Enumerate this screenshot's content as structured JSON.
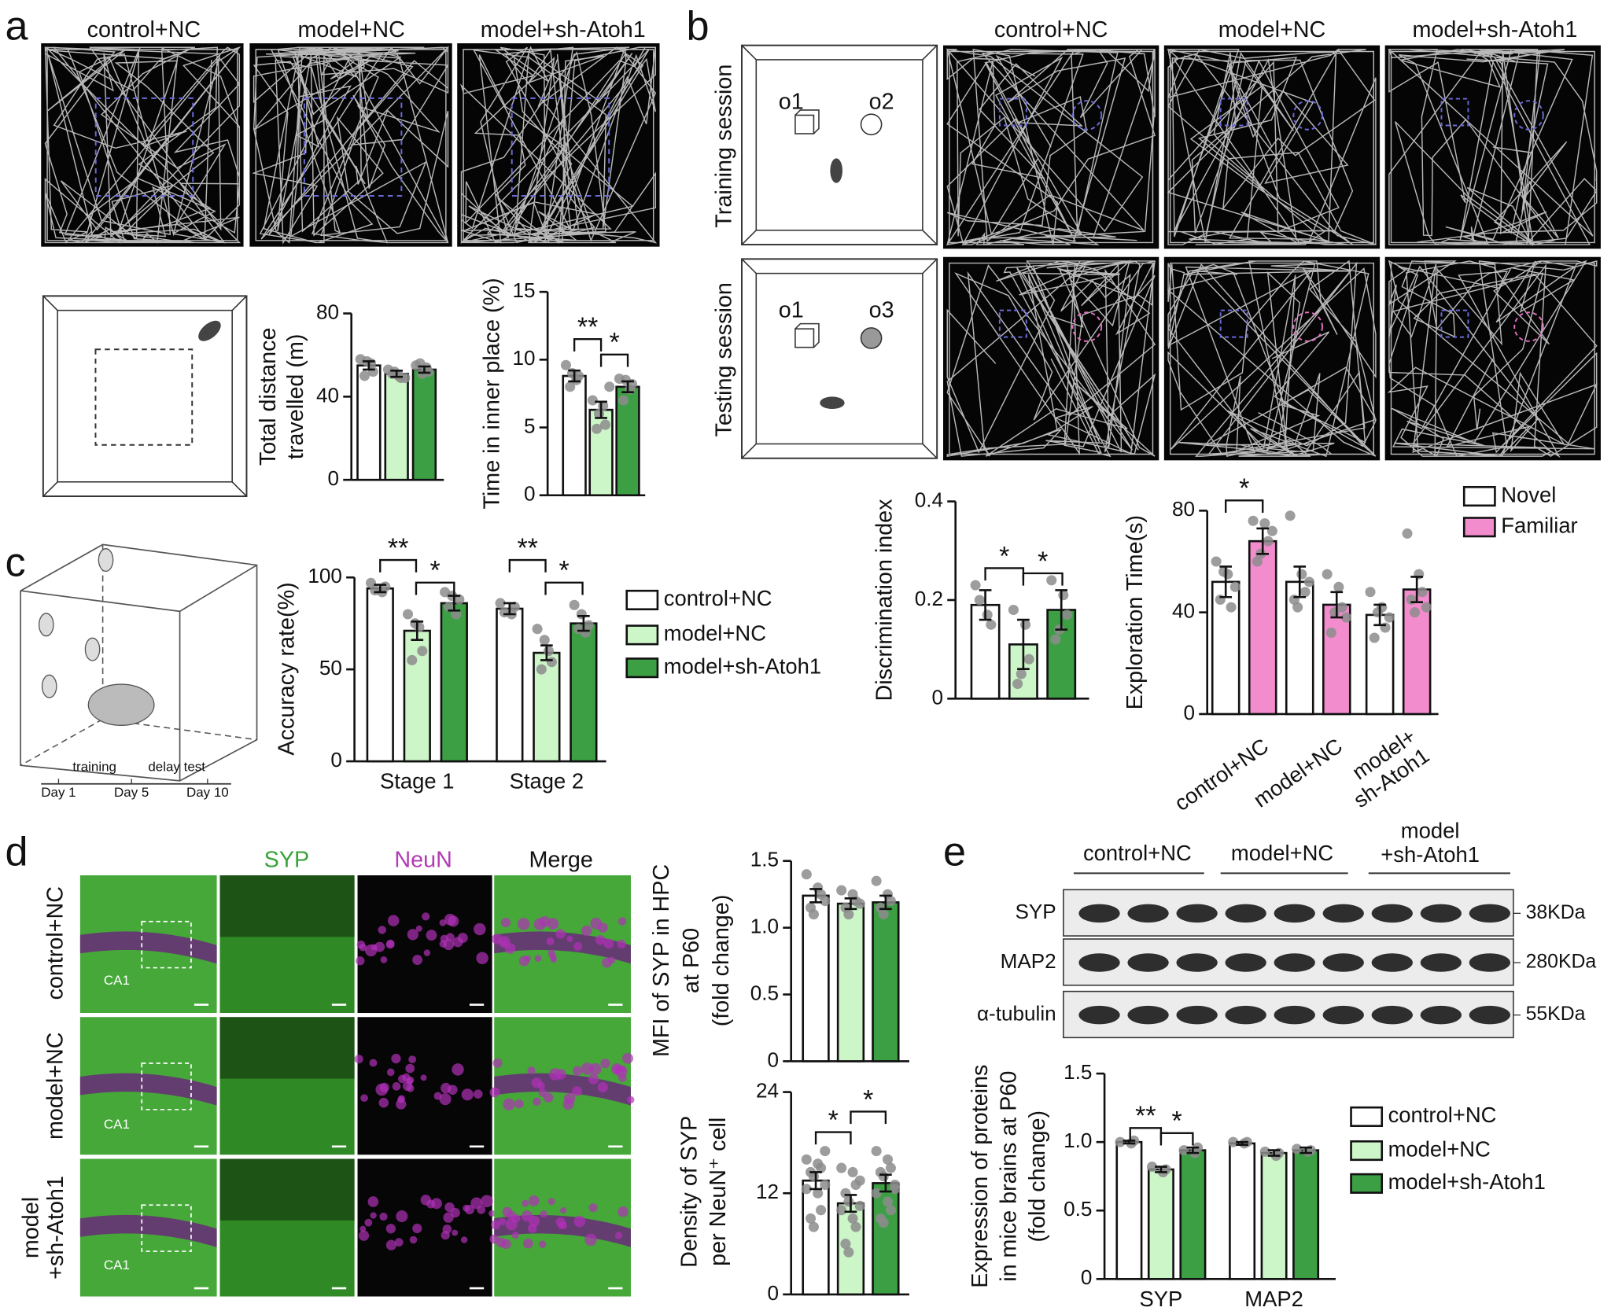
{
  "figure": {
    "panels": [
      "a",
      "b",
      "c",
      "d",
      "e"
    ],
    "a": {
      "columns": [
        "control+NC",
        "model+NC",
        "model+sh-Atoh1"
      ]
    },
    "b": {
      "columns": [
        "control+NC",
        "model+NC",
        "model+sh-Atoh1"
      ],
      "rows": [
        "Training session",
        "Testing session"
      ],
      "objects": [
        [
          "o1",
          "o2"
        ],
        [
          "o1",
          "o3"
        ]
      ]
    },
    "c": {
      "timeline": [
        "training",
        "delay test"
      ],
      "days": [
        "Day 1",
        "Day 5",
        "Day 10"
      ]
    },
    "d": {
      "columns": [
        "SYP",
        "NeuN",
        "Merge"
      ],
      "rows": [
        "control+NC",
        "model+NC",
        "model\n+sh-Atoh1"
      ],
      "region": [
        "CA1",
        "CA1",
        "CA1"
      ]
    },
    "e": {
      "groups": [
        "control+NC",
        "model+NC",
        "model\n+sh-Atoh1"
      ],
      "proteins": [
        "SYP",
        "MAP2",
        "α-tubulin"
      ],
      "sizes": [
        "38KDa",
        "280KDa",
        "55KDa"
      ]
    }
  },
  "chart_data": [
    {
      "type": "bar",
      "ylabel": [
        "Total distance",
        "travelled (m)"
      ],
      "categories": [
        null
      ],
      "ylim": [
        0,
        80
      ],
      "yticks": [
        0,
        40,
        80
      ],
      "series": [
        {
          "color": "#ffffff",
          "values": [
            55
          ],
          "errors": [
            2
          ],
          "points": [
            [
              58,
              56,
              52,
              50,
              57
            ]
          ]
        },
        {
          "color": "#ccf5c8",
          "values": [
            51
          ],
          "errors": [
            1.5
          ],
          "points": [
            [
              53,
              50,
              49,
              51,
              52,
              49
            ]
          ]
        },
        {
          "color": "#3c9f44",
          "values": [
            53
          ],
          "errors": [
            1.5
          ],
          "points": [
            [
              55,
              54,
              52,
              56,
              51
            ]
          ]
        }
      ]
    },
    {
      "type": "bar",
      "ylabel": [
        "Time in inner place (%)"
      ],
      "categories": [
        null
      ],
      "ylim": [
        0,
        15
      ],
      "yticks": [
        0,
        5,
        10,
        15
      ],
      "annotations": [
        "**",
        "*"
      ],
      "series": [
        {
          "color": "#ffffff",
          "values": [
            8.8
          ],
          "errors": [
            0.4
          ],
          "points": [
            [
              9.6,
              8.5,
              8.8,
              8.0,
              9.0
            ]
          ]
        },
        {
          "color": "#ccf5c8",
          "values": [
            6.3
          ],
          "errors": [
            0.6
          ],
          "points": [
            [
              7.0,
              6.6,
              5.2,
              4.9,
              6.0,
              8.0
            ]
          ]
        },
        {
          "color": "#3c9f44",
          "values": [
            8.0
          ],
          "errors": [
            0.4
          ],
          "points": [
            [
              8.6,
              7.8,
              8.2,
              7.0,
              8.5
            ]
          ]
        }
      ]
    },
    {
      "type": "bar",
      "ylabel": [
        "Discrimination index"
      ],
      "categories": [
        null
      ],
      "ylim": [
        0,
        0.4
      ],
      "yticks": [
        0,
        0.2,
        0.4
      ],
      "annotations": [
        "*",
        "*"
      ],
      "series": [
        {
          "color": "#ffffff",
          "values": [
            0.19
          ],
          "errors": [
            0.03
          ],
          "points": [
            [
              0.23,
              0.17,
              0.15,
              0.2
            ]
          ]
        },
        {
          "color": "#ccf5c8",
          "values": [
            0.11
          ],
          "errors": [
            0.05
          ],
          "points": [
            [
              0.18,
              0.15,
              0.08,
              0.03,
              0.05
            ]
          ]
        },
        {
          "color": "#3c9f44",
          "values": [
            0.18
          ],
          "errors": [
            0.04
          ],
          "points": [
            [
              0.24,
              0.21,
              0.17,
              0.12,
              0.14
            ]
          ]
        }
      ]
    },
    {
      "type": "bar",
      "ylabel": [
        "Exploration Time(s)"
      ],
      "categories": [
        "control+NC",
        "model+NC",
        "model+\nsh-Atoh1"
      ],
      "ylim": [
        0,
        80
      ],
      "yticks": [
        0,
        40,
        80
      ],
      "annotations": [
        "*"
      ],
      "legend": "upper right",
      "series": [
        {
          "name": "Novel",
          "color": "#ffffff",
          "values": [
            52,
            52,
            39
          ],
          "errors": [
            6,
            6,
            4
          ],
          "points": [
            [
              60,
              55,
              42,
              45,
              56,
              50
            ],
            [
              78,
              55,
              48,
              45,
              42,
              52
            ],
            [
              48,
              42,
              34,
              30,
              40,
              38
            ]
          ]
        },
        {
          "name": "Familiar",
          "color": "#f28ccd",
          "values": [
            68,
            43,
            49
          ],
          "errors": [
            5,
            5,
            5
          ],
          "points": [
            [
              76,
              75,
              68,
              60,
              63,
              72
            ],
            [
              55,
              50,
              42,
              32,
              40,
              38
            ],
            [
              71,
              55,
              48,
              45,
              40,
              42
            ]
          ]
        }
      ]
    },
    {
      "type": "bar",
      "ylabel": [
        "Accuracy rate(%)"
      ],
      "categories": [
        "Stage 1",
        "Stage 2"
      ],
      "ylim": [
        0,
        100
      ],
      "yticks": [
        0,
        50,
        100
      ],
      "annotations": [
        "**",
        "*",
        "**",
        "*"
      ],
      "legend": "right",
      "series": [
        {
          "name": "control+NC",
          "color": "#ffffff",
          "values": [
            94,
            83
          ],
          "errors": [
            2,
            3
          ],
          "points": [
            [
              97,
              92,
              95,
              93
            ],
            [
              86,
              80,
              84,
              81
            ]
          ]
        },
        {
          "name": "model+NC",
          "color": "#ccf5c8",
          "values": [
            71,
            59
          ],
          "errors": [
            5,
            4
          ],
          "points": [
            [
              80,
              73,
              60,
              55,
              75
            ],
            [
              72,
              60,
              54,
              50,
              66
            ]
          ]
        },
        {
          "name": "model+sh-Atoh1",
          "color": "#3c9f44",
          "values": [
            86,
            75
          ],
          "errors": [
            4,
            4
          ],
          "points": [
            [
              92,
              80,
              88,
              84,
              90
            ],
            [
              85,
              70,
              74,
              72,
              80
            ]
          ]
        }
      ]
    },
    {
      "type": "bar",
      "ylabel": [
        "MFI of SYP in HPC",
        "at P60",
        "(fold change)"
      ],
      "categories": [
        null
      ],
      "ylim": [
        0,
        1.5
      ],
      "yticks": [
        0,
        0.5,
        {
          "value": 1,
          "label": "1.0"
        },
        1.5
      ],
      "series": [
        {
          "color": "#ffffff",
          "values": [
            1.24
          ],
          "errors": [
            0.05
          ],
          "points": [
            [
              1.4,
              1.3,
              1.25,
              1.15,
              1.1,
              1.2
            ]
          ]
        },
        {
          "color": "#ccf5c8",
          "values": [
            1.18
          ],
          "errors": [
            0.04
          ],
          "points": [
            [
              1.28,
              1.25,
              1.2,
              1.15,
              1.1,
              1.18
            ]
          ]
        },
        {
          "color": "#3c9f44",
          "values": [
            1.19
          ],
          "errors": [
            0.05
          ],
          "points": [
            [
              1.35,
              1.25,
              1.2,
              1.15,
              1.1
            ]
          ]
        }
      ]
    },
    {
      "type": "bar",
      "ylabel": [
        "Density of SYP",
        "per NeuN⁺ cell"
      ],
      "categories": [
        null
      ],
      "ylim": [
        0,
        24
      ],
      "yticks": [
        0,
        12,
        24
      ],
      "annotations": [
        "*",
        "*"
      ],
      "series": [
        {
          "color": "#ffffff",
          "values": [
            13.5
          ],
          "errors": [
            1
          ],
          "points": [
            [
              16,
              15.5,
              15,
              14.5,
              14,
              13,
              12.5,
              12,
              10,
              9,
              8,
              17
            ]
          ]
        },
        {
          "color": "#ccf5c8",
          "values": [
            10.8
          ],
          "errors": [
            1
          ],
          "points": [
            [
              15,
              14.5,
              13,
              12,
              11,
              10.5,
              10,
              9,
              8,
              6,
              5,
              13.5
            ]
          ]
        },
        {
          "color": "#3c9f44",
          "values": [
            13.2
          ],
          "errors": [
            1
          ],
          "points": [
            [
              17,
              16,
              15,
              14.5,
              14,
              13,
              12,
              11,
              10,
              9,
              8.5,
              12.5
            ]
          ]
        }
      ]
    },
    {
      "type": "bar",
      "ylabel": [
        "Expression of proteins",
        "in mice brains at P60",
        "(fold change)"
      ],
      "categories": [
        "SYP",
        "MAP2"
      ],
      "ylim": [
        0,
        1.5
      ],
      "yticks": [
        0,
        0.5,
        {
          "value": 1,
          "label": "1.0"
        },
        1.5
      ],
      "annotations": [
        "**",
        "*"
      ],
      "legend": "right",
      "series": [
        {
          "name": "control+NC",
          "color": "#ffffff",
          "values": [
            1.0,
            0.99
          ],
          "errors": [
            0.01,
            0.01
          ],
          "points": [
            [
              1.0,
              0.99,
              1.01
            ],
            [
              1.0,
              0.99,
              1.0
            ]
          ]
        },
        {
          "name": "model+NC",
          "color": "#ccf5c8",
          "values": [
            0.8,
            0.92
          ],
          "errors": [
            0.02,
            0.02
          ],
          "points": [
            [
              0.82,
              0.78,
              0.8
            ],
            [
              0.93,
              0.9,
              0.92
            ]
          ]
        },
        {
          "name": "model+sh-Atoh1",
          "color": "#3c9f44",
          "values": [
            0.94,
            0.94
          ],
          "errors": [
            0.02,
            0.02
          ],
          "points": [
            [
              0.94,
              0.92,
              0.96
            ],
            [
              0.95,
              0.93,
              0.94
            ]
          ]
        }
      ]
    }
  ]
}
